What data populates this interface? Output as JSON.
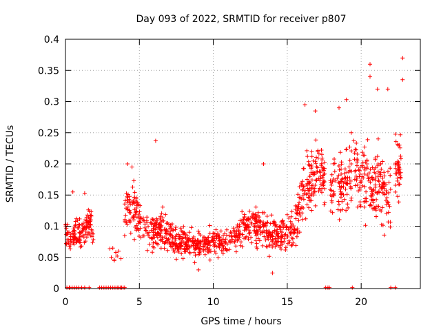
{
  "chart_data": {
    "type": "scatter",
    "title": "Day 093 of 2022, SRMTID for receiver p807",
    "xlabel": "GPS time / hours",
    "ylabel": "SRMTID / TECUs",
    "xlim": [
      0,
      24
    ],
    "ylim": [
      0,
      0.4
    ],
    "x_ticks": [
      0,
      5,
      10,
      15,
      20
    ],
    "y_ticks": [
      0,
      0.05,
      0.1,
      0.15,
      0.2,
      0.25,
      0.3,
      0.35,
      0.4
    ],
    "y_tick_labels": [
      "0",
      "0.05",
      "0.1",
      "0.15",
      "0.2",
      "0.25",
      "0.3",
      "0.35",
      "0.4"
    ],
    "grid": true,
    "marker": "+",
    "series_color": "#ff0000",
    "trend": {
      "x": [
        0,
        0.3,
        1.0,
        1.7,
        2.5,
        4.0,
        4.5,
        5.5,
        6.5,
        7.5,
        9.0,
        10.0,
        11.0,
        12.0,
        13.0,
        14.0,
        15.0,
        15.5,
        16.0,
        16.5,
        17.0,
        18.0,
        19.0,
        19.5,
        20.0,
        20.5,
        21.0,
        22.0,
        22.7
      ],
      "y": [
        0.09,
        0.08,
        0.085,
        0.11,
        0.0,
        0.12,
        0.13,
        0.09,
        0.095,
        0.075,
        0.07,
        0.075,
        0.075,
        0.1,
        0.1,
        0.085,
        0.09,
        0.095,
        0.15,
        0.17,
        0.19,
        0.17,
        0.17,
        0.19,
        0.18,
        0.17,
        0.16,
        0.16,
        0.22
      ],
      "spread": [
        0.02,
        0.025,
        0.025,
        0.025,
        0.0,
        0.035,
        0.035,
        0.03,
        0.03,
        0.025,
        0.02,
        0.02,
        0.02,
        0.025,
        0.03,
        0.025,
        0.025,
        0.03,
        0.04,
        0.045,
        0.045,
        0.045,
        0.045,
        0.05,
        0.05,
        0.05,
        0.05,
        0.05,
        0.06
      ]
    },
    "gaps": [
      [
        1.9,
        4.0
      ],
      [
        17.6,
        17.9
      ],
      [
        19.4,
        19.5
      ],
      [
        22.0,
        22.3
      ]
    ],
    "extremes": [
      {
        "x": 6.1,
        "y": 0.237
      },
      {
        "x": 19.0,
        "y": 0.303
      },
      {
        "x": 20.6,
        "y": 0.36
      },
      {
        "x": 20.6,
        "y": 0.34
      },
      {
        "x": 22.8,
        "y": 0.37
      },
      {
        "x": 22.8,
        "y": 0.335
      },
      {
        "x": 21.8,
        "y": 0.32
      },
      {
        "x": 16.2,
        "y": 0.295
      },
      {
        "x": 16.9,
        "y": 0.285
      },
      {
        "x": 18.5,
        "y": 0.29
      },
      {
        "x": 21.1,
        "y": 0.32
      },
      {
        "x": 4.2,
        "y": 0.2
      },
      {
        "x": 4.5,
        "y": 0.195
      },
      {
        "x": 13.4,
        "y": 0.2
      },
      {
        "x": 0.5,
        "y": 0.155
      },
      {
        "x": 3.2,
        "y": 0.065
      },
      {
        "x": 3.3,
        "y": 0.045
      },
      {
        "x": 1.3,
        "y": 0.153
      },
      {
        "x": 9.0,
        "y": 0.03
      },
      {
        "x": 14.0,
        "y": 0.025
      }
    ],
    "zero_points": [
      0.1,
      0.25,
      0.3,
      0.45,
      0.6,
      0.75,
      0.9,
      1.1,
      1.3,
      1.6,
      2.3,
      2.45,
      2.6,
      2.75,
      2.9,
      3.05,
      3.2,
      3.35,
      3.5,
      3.6,
      3.7,
      3.8,
      3.9,
      4.0,
      17.6,
      17.75,
      17.85,
      19.4,
      22.0,
      22.3
    ],
    "n_points": 1600,
    "seed": 93
  }
}
